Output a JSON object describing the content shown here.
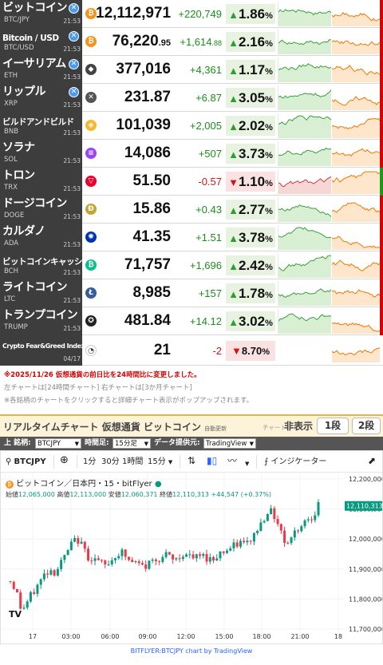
{
  "coins": [
    {
      "name": "ビットコイン",
      "symbol": "BTC/JPY",
      "time": "21:53",
      "icon": "bitcoin-icon",
      "icon_char": "₿",
      "icon_color": "#f7931a",
      "badge": true,
      "price": "12,112,971",
      "price_dec": "",
      "change": "+220,749",
      "change_dec": "",
      "dir": "up",
      "pct": "1.86",
      "spark1": "green",
      "spark2": "orange",
      "bar": "red"
    },
    {
      "name": "Bitcoin / USD",
      "symbol": "BTC/USD",
      "time": "21:53",
      "icon": "bitcoin-icon",
      "icon_char": "₿",
      "icon_color": "#f7931a",
      "badge": true,
      "price": "76,220",
      "price_dec": ".95",
      "change": "+1,614",
      "change_dec": ".88",
      "dir": "up",
      "pct": "2.16",
      "spark1": "green",
      "spark2": "orange",
      "bar": "red"
    },
    {
      "name": "イーサリアム",
      "symbol": "ETH",
      "time": "21:53",
      "icon": "ethereum-icon",
      "icon_char": "◆",
      "icon_color": "#444",
      "badge": true,
      "price": "377,016",
      "price_dec": "",
      "change": "+4,361",
      "change_dec": "",
      "dir": "up",
      "pct": "1.17",
      "spark1": "green",
      "spark2": "orange",
      "bar": "red"
    },
    {
      "name": "リップル",
      "symbol": "XRP",
      "time": "21:53",
      "icon": "xrp-icon",
      "icon_char": "✕",
      "icon_color": "#555",
      "badge": true,
      "price": "231.87",
      "price_dec": "",
      "change": "+6.87",
      "change_dec": "",
      "dir": "up",
      "pct": "3.05",
      "spark1": "green",
      "spark2": "orange",
      "bar": "red"
    },
    {
      "name": "ビルドアンドビルド",
      "symbol": "BNB",
      "time": "21:53",
      "icon": "bnb-icon",
      "icon_char": "◈",
      "icon_color": "#f3ba2f",
      "badge": false,
      "price": "101,039",
      "price_dec": "",
      "change": "+2,005",
      "change_dec": "",
      "dir": "up",
      "pct": "2.02",
      "spark1": "green",
      "spark2": "orange",
      "bar": "red"
    },
    {
      "name": "ソラナ",
      "symbol": "SOL",
      "time": "21:53",
      "icon": "solana-icon",
      "icon_char": "≡",
      "icon_color": "#9945ff",
      "badge": false,
      "price": "14,086",
      "price_dec": "",
      "change": "+507",
      "change_dec": "",
      "dir": "up",
      "pct": "3.73",
      "spark1": "green",
      "spark2": "orange",
      "bar": "red"
    },
    {
      "name": "トロン",
      "symbol": "TRX",
      "time": "21:53",
      "icon": "tron-icon",
      "icon_char": "▽",
      "icon_color": "#eb0029",
      "badge": false,
      "price": "51.50",
      "price_dec": "",
      "change": "-0.57",
      "change_dec": "",
      "dir": "down",
      "pct": "1.10",
      "spark1": "red",
      "spark2": "orange",
      "bar": "green"
    },
    {
      "name": "ドージコイン",
      "symbol": "DOGE",
      "time": "21:53",
      "icon": "dogecoin-icon",
      "icon_char": "Ð",
      "icon_color": "#c2a633",
      "badge": false,
      "price": "15.86",
      "price_dec": "",
      "change": "+0.43",
      "change_dec": "",
      "dir": "up",
      "pct": "2.77",
      "spark1": "green",
      "spark2": "orange",
      "bar": "red"
    },
    {
      "name": "カルダノ",
      "symbol": "ADA",
      "time": "21:53",
      "icon": "cardano-icon",
      "icon_char": "✺",
      "icon_color": "#0033ad",
      "badge": false,
      "price": "41.35",
      "price_dec": "",
      "change": "+1.51",
      "change_dec": "",
      "dir": "up",
      "pct": "3.78",
      "spark1": "green",
      "spark2": "orange",
      "bar": "red"
    },
    {
      "name": "ビットコインキャッシュ",
      "symbol": "BCH",
      "time": "21:53",
      "icon": "bitcoin-cash-icon",
      "icon_char": "₿",
      "icon_color": "#0ac18e",
      "badge": false,
      "price": "71,757",
      "price_dec": "",
      "change": "+1,696",
      "change_dec": "",
      "dir": "up",
      "pct": "2.42",
      "spark1": "green",
      "spark2": "orange",
      "bar": "red"
    },
    {
      "name": "ライトコイン",
      "symbol": "LTC",
      "time": "21:53",
      "icon": "litecoin-icon",
      "icon_char": "Ł",
      "icon_color": "#345d9d",
      "badge": false,
      "price": "8,985",
      "price_dec": "",
      "change": "+157",
      "change_dec": "",
      "dir": "up",
      "pct": "1.78",
      "spark1": "green",
      "spark2": "orange",
      "bar": "red"
    },
    {
      "name": "トランプコイン",
      "symbol": "TRUMP",
      "time": "21:53",
      "icon": "trump-coin-icon",
      "icon_char": "✪",
      "icon_color": "#222",
      "badge": false,
      "price": "481.84",
      "price_dec": "",
      "change": "+14.12",
      "change_dec": "",
      "dir": "up",
      "pct": "3.02",
      "spark1": "green",
      "spark2": "orange",
      "bar": "red"
    }
  ],
  "fear_greed": {
    "name": "Crypto Fear&Greed Index",
    "date": "04/17",
    "value": "21",
    "change": "-2",
    "pct": "8.70",
    "unit": "%"
  },
  "pct_unit": "%",
  "notes": {
    "red": "※2025/11/26 仮想通貨の前日比を24時間比に変更しました。",
    "gray1": "左チャートは[24時間チャート] 右チャートは[3か月チャート]",
    "gray2": "※各銘柄のチャートをクリックすると詳細チャート表示がポップアップされます。"
  },
  "realtime": {
    "title": "リアルタイムチャート 仮想通貨 ビットコイン",
    "auto": "自動更新",
    "chart_label": "チャート:",
    "hide": "非表示",
    "one_tier": "1段",
    "two_tier": "2段"
  },
  "settings": {
    "symbol_label": "上 銘柄:",
    "symbol_value": "BTCJPY",
    "timeframe_label": "時間足:",
    "timeframe_value": "15分足",
    "provider_label": "データ提供元:",
    "provider_value": "TradingView"
  },
  "tv": {
    "symbol": "BTCJPY",
    "intervals": [
      "1分",
      "30分",
      "1時間",
      "15分"
    ],
    "indicator": "インジケーター",
    "legend": "ビットコイン／日本円・15・bitFlyer",
    "ohlc": {
      "open_label": "始値",
      "open": "12,065,000",
      "high_label": "高値",
      "high": "12,113,000",
      "low_label": "安値",
      "low": "12,060,371",
      "close_label": "終値",
      "close": "12,110,313",
      "change": "+44,547 (+0.37%)"
    },
    "last_price": "12,110,313",
    "y_ticks": [
      "12,200,000",
      "12,100,000",
      "12,000,000",
      "11,900,000",
      "11,800,000",
      "11,700,000"
    ],
    "x_ticks": [
      "17",
      "03:00",
      "06:00",
      "09:00",
      "12:00",
      "15:00",
      "18:00",
      "21:00",
      "18"
    ],
    "logo": "TV",
    "up_color": "#089981",
    "down_color": "#f23645"
  },
  "footer": "BITFLYER:BTCJPY chart by TradingView",
  "chart_data": {
    "type": "candlestick",
    "title": "ビットコイン／日本円・15・bitFlyer",
    "x_ticks": [
      "17",
      "03:00",
      "06:00",
      "09:00",
      "12:00",
      "15:00",
      "18:00",
      "21:00",
      "18"
    ],
    "ylim": [
      11700000,
      12200000
    ],
    "close_series": [
      11860000,
      11830000,
      11760000,
      11790000,
      11820000,
      11850000,
      11880000,
      11900000,
      11890000,
      11920000,
      11950000,
      11985000,
      12000000,
      11970000,
      11940000,
      11935000,
      11920000,
      11910000,
      11930000,
      11950000,
      11955000,
      11930000,
      11920000,
      11915000,
      11905000,
      11925000,
      11935000,
      11940000,
      11945000,
      11930000,
      11935000,
      11955000,
      11940000,
      11935000,
      11945000,
      11940000,
      11930000,
      11950000,
      11960000,
      11965000,
      11975000,
      11990000,
      11980000,
      12000000,
      12030000,
      12060000,
      12100000,
      12080000,
      12050000,
      11990000,
      12000000,
      12030000,
      12050000,
      12070000,
      12080000,
      12110313
    ]
  }
}
